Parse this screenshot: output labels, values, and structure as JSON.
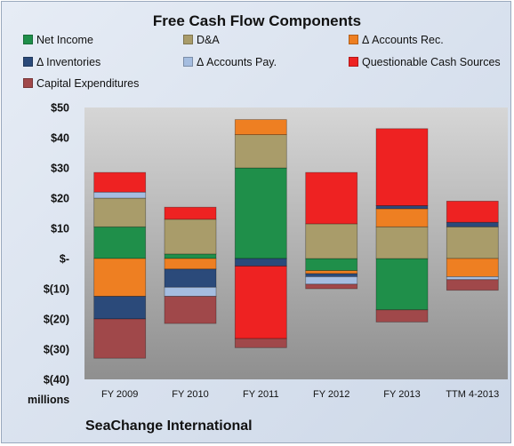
{
  "chart_data": {
    "type": "bar",
    "stacked": true,
    "title": "Free Cash Flow Components",
    "categories": [
      "FY 2009",
      "FY 2010",
      "FY 2011",
      "FY 2012",
      "FY 2013",
      "TTM 4-2013"
    ],
    "ylim": [
      -40,
      50
    ],
    "yticks": [
      50,
      40,
      30,
      20,
      10,
      0,
      -10,
      -20,
      -30,
      -40
    ],
    "ytick_labels": [
      "$50",
      "$40",
      "$30",
      "$20",
      "$10",
      "$-",
      "$(10)",
      "$(20)",
      "$(30)",
      "$(40)"
    ],
    "ylabel": "millions",
    "grid": false,
    "legend_position": "top",
    "series": [
      {
        "name": "Net Income",
        "color": "#1f8f4a",
        "values": [
          10.5,
          1.5,
          30,
          -4,
          -17,
          0
        ]
      },
      {
        "name": "D&A",
        "color": "#a99c6a",
        "values": [
          9.5,
          11.5,
          11,
          11.5,
          10.5,
          10.5
        ]
      },
      {
        "name": "Δ Accounts Rec.",
        "color": "#ee7f22",
        "values": [
          -12.5,
          -3.5,
          5,
          -1,
          6,
          -6
        ]
      },
      {
        "name": "Δ Inventories",
        "color": "#2b4a7a",
        "values": [
          -7.5,
          -6,
          -2.5,
          -1,
          1,
          1.5
        ]
      },
      {
        "name": "Δ Accounts Pay.",
        "color": "#a5bde0",
        "values": [
          2,
          -3,
          0,
          -2.5,
          0,
          -1
        ]
      },
      {
        "name": "Questionable Cash Sources",
        "color": "#ee2222",
        "values": [
          6.5,
          4,
          -24,
          17,
          25.5,
          7
        ]
      },
      {
        "name": "Capital Expenditures",
        "color": "#a0484a",
        "values": [
          -13,
          -9,
          -3,
          -1.5,
          -4,
          -3.5
        ]
      }
    ]
  },
  "footer": {
    "company": "SeaChange International"
  }
}
